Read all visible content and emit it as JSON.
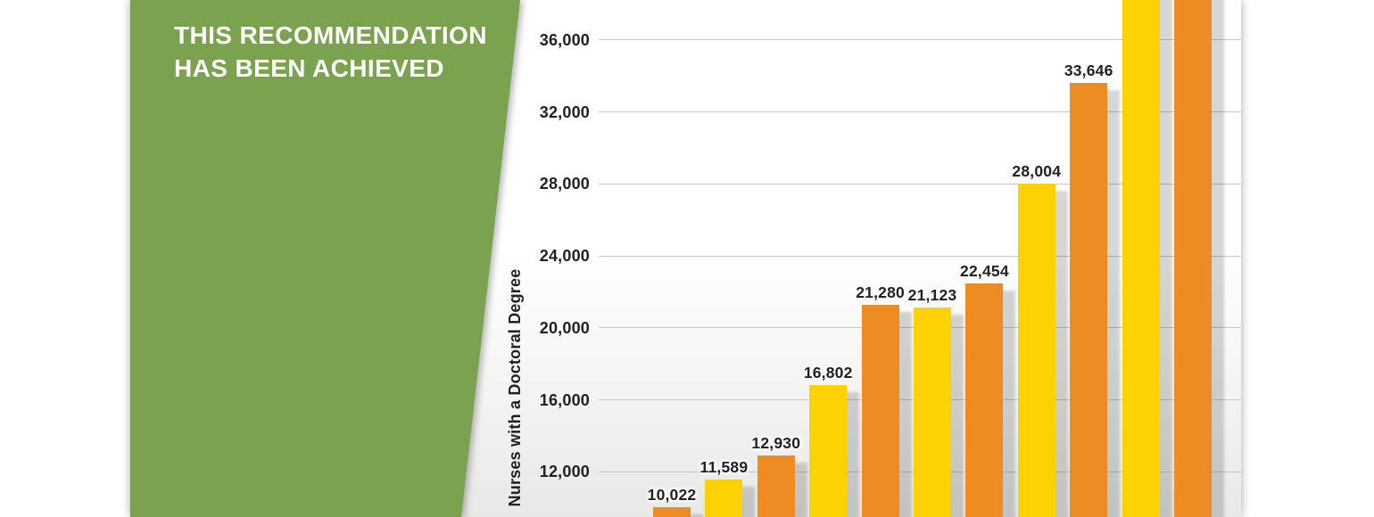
{
  "banner": {
    "line1": "THIS RECOMMENDATION",
    "line2": "HAS BEEN ACHIEVED",
    "background_color": "#7aa24f",
    "text_color": "#ffffff"
  },
  "chart_data": {
    "type": "bar",
    "title": "",
    "xlabel": "",
    "ylabel": "Nurses with a Doctoral Degree",
    "grid": true,
    "legend_position": "none",
    "x_axis_labels_visible": false,
    "ytick_interval": 4000,
    "ylim_visible": [
      9490,
      38230
    ],
    "y_ticks": [
      {
        "value": 36000,
        "label": "36,000"
      },
      {
        "value": 32000,
        "label": "32,000"
      },
      {
        "value": 28000,
        "label": "28,000"
      },
      {
        "value": 24000,
        "label": "24,000"
      },
      {
        "value": 20000,
        "label": "20,000"
      },
      {
        "value": 16000,
        "label": "16,000"
      },
      {
        "value": 12000,
        "label": "12,000"
      }
    ],
    "bars": [
      {
        "value": 10022,
        "label": "10,022",
        "color": "orange",
        "cutoff_at_top": false
      },
      {
        "value": 11589,
        "label": "11,589",
        "color": "yellow",
        "cutoff_at_top": false
      },
      {
        "value": 12930,
        "label": "12,930",
        "color": "orange",
        "cutoff_at_top": false
      },
      {
        "value": 16802,
        "label": "16,802",
        "color": "yellow",
        "cutoff_at_top": false
      },
      {
        "value": 21280,
        "label": "21,280",
        "color": "orange",
        "cutoff_at_top": false
      },
      {
        "value": 21123,
        "label": "21,123",
        "color": "yellow",
        "cutoff_at_top": false
      },
      {
        "value": 22454,
        "label": "22,454",
        "color": "orange",
        "cutoff_at_top": false
      },
      {
        "value": 28004,
        "label": "28,004",
        "color": "yellow",
        "cutoff_at_top": false
      },
      {
        "value": 33646,
        "label": "33,646",
        "color": "orange",
        "cutoff_at_top": false
      },
      {
        "value": null,
        "label": "",
        "color": "yellow",
        "cutoff_at_top": true
      },
      {
        "value": null,
        "label": "",
        "color": "orange",
        "cutoff_at_top": true
      }
    ],
    "colors": {
      "orange": "#ee8c24",
      "yellow": "#ffd303"
    },
    "gridline_color": "#c6c6c4",
    "bar_shadow_color": "#d5d5d3"
  }
}
